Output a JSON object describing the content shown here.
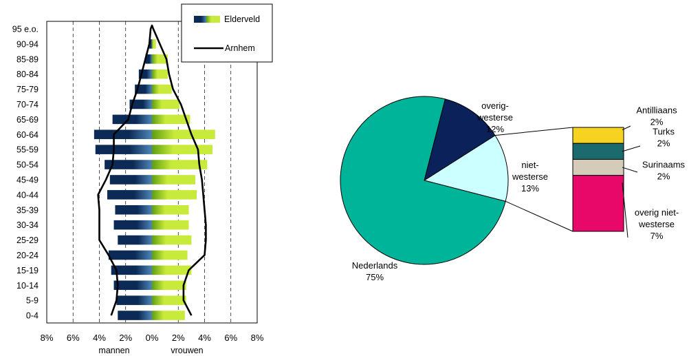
{
  "chart_data": [
    {
      "type": "bar",
      "orientation": "horizontal",
      "layout": "population-pyramid",
      "categories": [
        "0-4",
        "5-9",
        "10-14",
        "15-19",
        "20-24",
        "25-29",
        "30-34",
        "35-39",
        "40-44",
        "45-49",
        "50-54",
        "55-59",
        "60-64",
        "65-69",
        "70-74",
        "75-79",
        "80-84",
        "85-89",
        "90-94",
        "95 e.o."
      ],
      "series": [
        {
          "name": "Elderveld",
          "side": "mannen",
          "color_dark": "#0b2a55",
          "color_light": "#4f86b8",
          "values": [
            2.6,
            2.7,
            2.9,
            3.1,
            3.3,
            2.6,
            2.9,
            2.8,
            3.4,
            3.2,
            3.6,
            4.3,
            4.4,
            3.0,
            1.7,
            1.3,
            1.0,
            0.5,
            0.2,
            0.0
          ]
        },
        {
          "name": "Elderveld",
          "side": "vrouwen",
          "color_dark": "#5e9e0f",
          "color_light": "#c8ea3a",
          "values": [
            2.5,
            2.6,
            2.6,
            3.0,
            2.7,
            3.0,
            2.8,
            2.8,
            3.4,
            3.3,
            4.2,
            4.6,
            4.8,
            2.9,
            2.1,
            1.5,
            1.2,
            1.2,
            0.3,
            0.0
          ]
        },
        {
          "name": "Arnhem",
          "type": "line",
          "color": "#000000",
          "mannen": [
            3.1,
            2.7,
            2.6,
            2.7,
            3.3,
            4.0,
            4.0,
            4.0,
            4.1,
            3.5,
            3.0,
            2.9,
            2.9,
            1.8,
            1.5,
            1.1,
            0.8,
            0.5,
            0.2,
            0.1
          ],
          "vrouwen": [
            3.0,
            2.4,
            2.4,
            2.8,
            4.0,
            4.1,
            4.1,
            4.0,
            3.9,
            3.8,
            3.6,
            3.5,
            3.0,
            2.6,
            2.2,
            1.6,
            1.3,
            1.1,
            0.6,
            0.1
          ]
        }
      ],
      "x_ticks": [
        "8%",
        "6%",
        "4%",
        "2%",
        "0%",
        "2%",
        "4%",
        "6%",
        "8%"
      ],
      "xlim": [
        -8,
        8
      ],
      "xlabel_left": "mannen",
      "xlabel_right": "vrouwen",
      "grid": "vertical dashed",
      "legend": {
        "position": "top-right",
        "entries": [
          "Elderveld",
          "Arnhem"
        ]
      }
    },
    {
      "type": "pie",
      "slices": [
        {
          "label": "Nederlands",
          "pct_label": "75%",
          "value": 75,
          "color": "#00b49a"
        },
        {
          "label": "overig-\nwesterse",
          "pct_label": "12%",
          "value": 12,
          "color": "#0a215a"
        },
        {
          "label": "niet-\nwesterse",
          "pct_label": "13%",
          "value": 13,
          "color": "#ccffff"
        }
      ],
      "breakdown": {
        "of": "niet-\nwesterse",
        "type": "stacked-bar",
        "segments": [
          {
            "label": "Antilliaans",
            "pct_label": "2%",
            "value": 2,
            "color": "#f6d321"
          },
          {
            "label": "Turks",
            "pct_label": "2%",
            "value": 2,
            "color": "#1a6a6e"
          },
          {
            "label": "Surinaams",
            "pct_label": "2%",
            "value": 2,
            "color": "#d5cbb9"
          },
          {
            "label": "overig niet-\nwesterse",
            "pct_label": "7%",
            "value": 7,
            "color": "#e8086a"
          }
        ]
      }
    }
  ]
}
